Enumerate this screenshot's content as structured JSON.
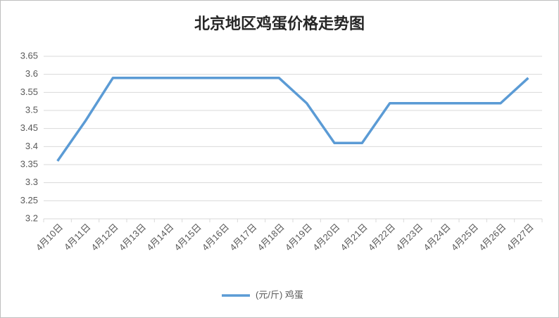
{
  "chart_data": {
    "type": "line",
    "title": "北京地区鸡蛋价格走势图",
    "categories": [
      "4月10日",
      "4月11日",
      "4月12日",
      "4月13日",
      "4月14日",
      "4月15日",
      "4月16日",
      "4月17日",
      "4月18日",
      "4月19日",
      "4月20日",
      "4月21日",
      "4月22日",
      "4月23日",
      "4月24日",
      "4月25日",
      "4月26日",
      "4月27日"
    ],
    "series": [
      {
        "name": "(元/斤) 鸡蛋",
        "color": "#5b9bd5",
        "values": [
          3.36,
          3.47,
          3.59,
          3.59,
          3.59,
          3.59,
          3.59,
          3.59,
          3.59,
          3.52,
          3.41,
          3.41,
          3.52,
          3.52,
          3.52,
          3.52,
          3.52,
          3.59
        ]
      }
    ],
    "ylim": [
      3.2,
      3.65
    ],
    "yticks": [
      3.2,
      3.25,
      3.3,
      3.35,
      3.4,
      3.45,
      3.5,
      3.55,
      3.6,
      3.65
    ],
    "grid": true,
    "legend": "bottom"
  }
}
